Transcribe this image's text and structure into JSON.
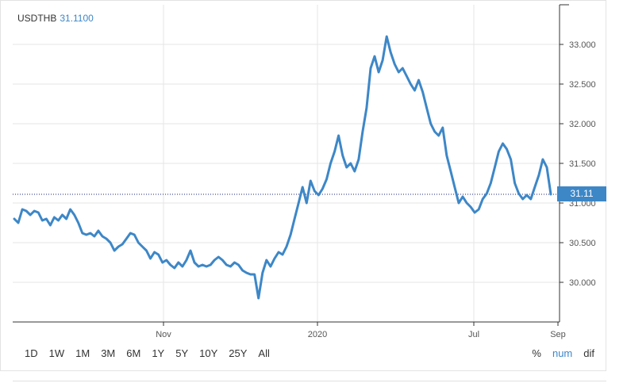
{
  "legend": {
    "symbol": "USDTHB",
    "value": "31.1100"
  },
  "last_price_label": "31.11",
  "range_buttons": [
    "1D",
    "1W",
    "1M",
    "3M",
    "6M",
    "1Y",
    "5Y",
    "10Y",
    "25Y",
    "All"
  ],
  "mode_buttons": [
    {
      "label": "%",
      "active": false
    },
    {
      "label": "num",
      "active": true
    },
    {
      "label": "dif",
      "active": false
    }
  ],
  "colors": {
    "line": "#3d87c7",
    "grid": "#e6e6e6",
    "last_price_line": "#1a237e"
  },
  "chart_data": {
    "type": "line",
    "xlabel": "",
    "ylabel": "",
    "title": "",
    "x_ticks": [
      "Nov",
      "2020",
      "Jul",
      "Sep"
    ],
    "y_ticks": [
      "30.000",
      "30.500",
      "31.000",
      "31.500",
      "32.000",
      "32.500",
      "33.000"
    ],
    "ylim": [
      29.5,
      33.5
    ],
    "last_value": 31.11,
    "series": [
      {
        "values": [
          30.8,
          30.75,
          30.92,
          30.9,
          30.85,
          30.9,
          30.88,
          30.78,
          30.8,
          30.72,
          30.82,
          30.78,
          30.85,
          30.8,
          30.92,
          30.85,
          30.75,
          30.62,
          30.6,
          30.62,
          30.58,
          30.65,
          30.58,
          30.55,
          30.5,
          30.4,
          30.45,
          30.48,
          30.55,
          30.62,
          30.6,
          30.5,
          30.45,
          30.4,
          30.3,
          30.38,
          30.35,
          30.25,
          30.28,
          30.22,
          30.18,
          30.25,
          30.2,
          30.28,
          30.4,
          30.25,
          30.2,
          30.22,
          30.2,
          30.22,
          30.28,
          30.32,
          30.28,
          30.22,
          30.2,
          30.25,
          30.22,
          30.15,
          30.12,
          30.1,
          30.1,
          29.8,
          30.12,
          30.28,
          30.2,
          30.3,
          30.38,
          30.35,
          30.45,
          30.6,
          30.8,
          31.0,
          31.2,
          31.0,
          31.28,
          31.15,
          31.1,
          31.18,
          31.3,
          31.5,
          31.65,
          31.85,
          31.6,
          31.45,
          31.5,
          31.4,
          31.55,
          31.9,
          32.2,
          32.7,
          32.85,
          32.65,
          32.8,
          33.1,
          32.9,
          32.75,
          32.65,
          32.7,
          32.6,
          32.5,
          32.42,
          32.55,
          32.4,
          32.2,
          32.0,
          31.9,
          31.85,
          31.95,
          31.6,
          31.4,
          31.2,
          31.0,
          31.08,
          31.0,
          30.95,
          30.88,
          30.92,
          31.05,
          31.12,
          31.25,
          31.45,
          31.65,
          31.75,
          31.68,
          31.55,
          31.25,
          31.12,
          31.05,
          31.1,
          31.05,
          31.2,
          31.35,
          31.55,
          31.45,
          31.11
        ]
      }
    ]
  }
}
